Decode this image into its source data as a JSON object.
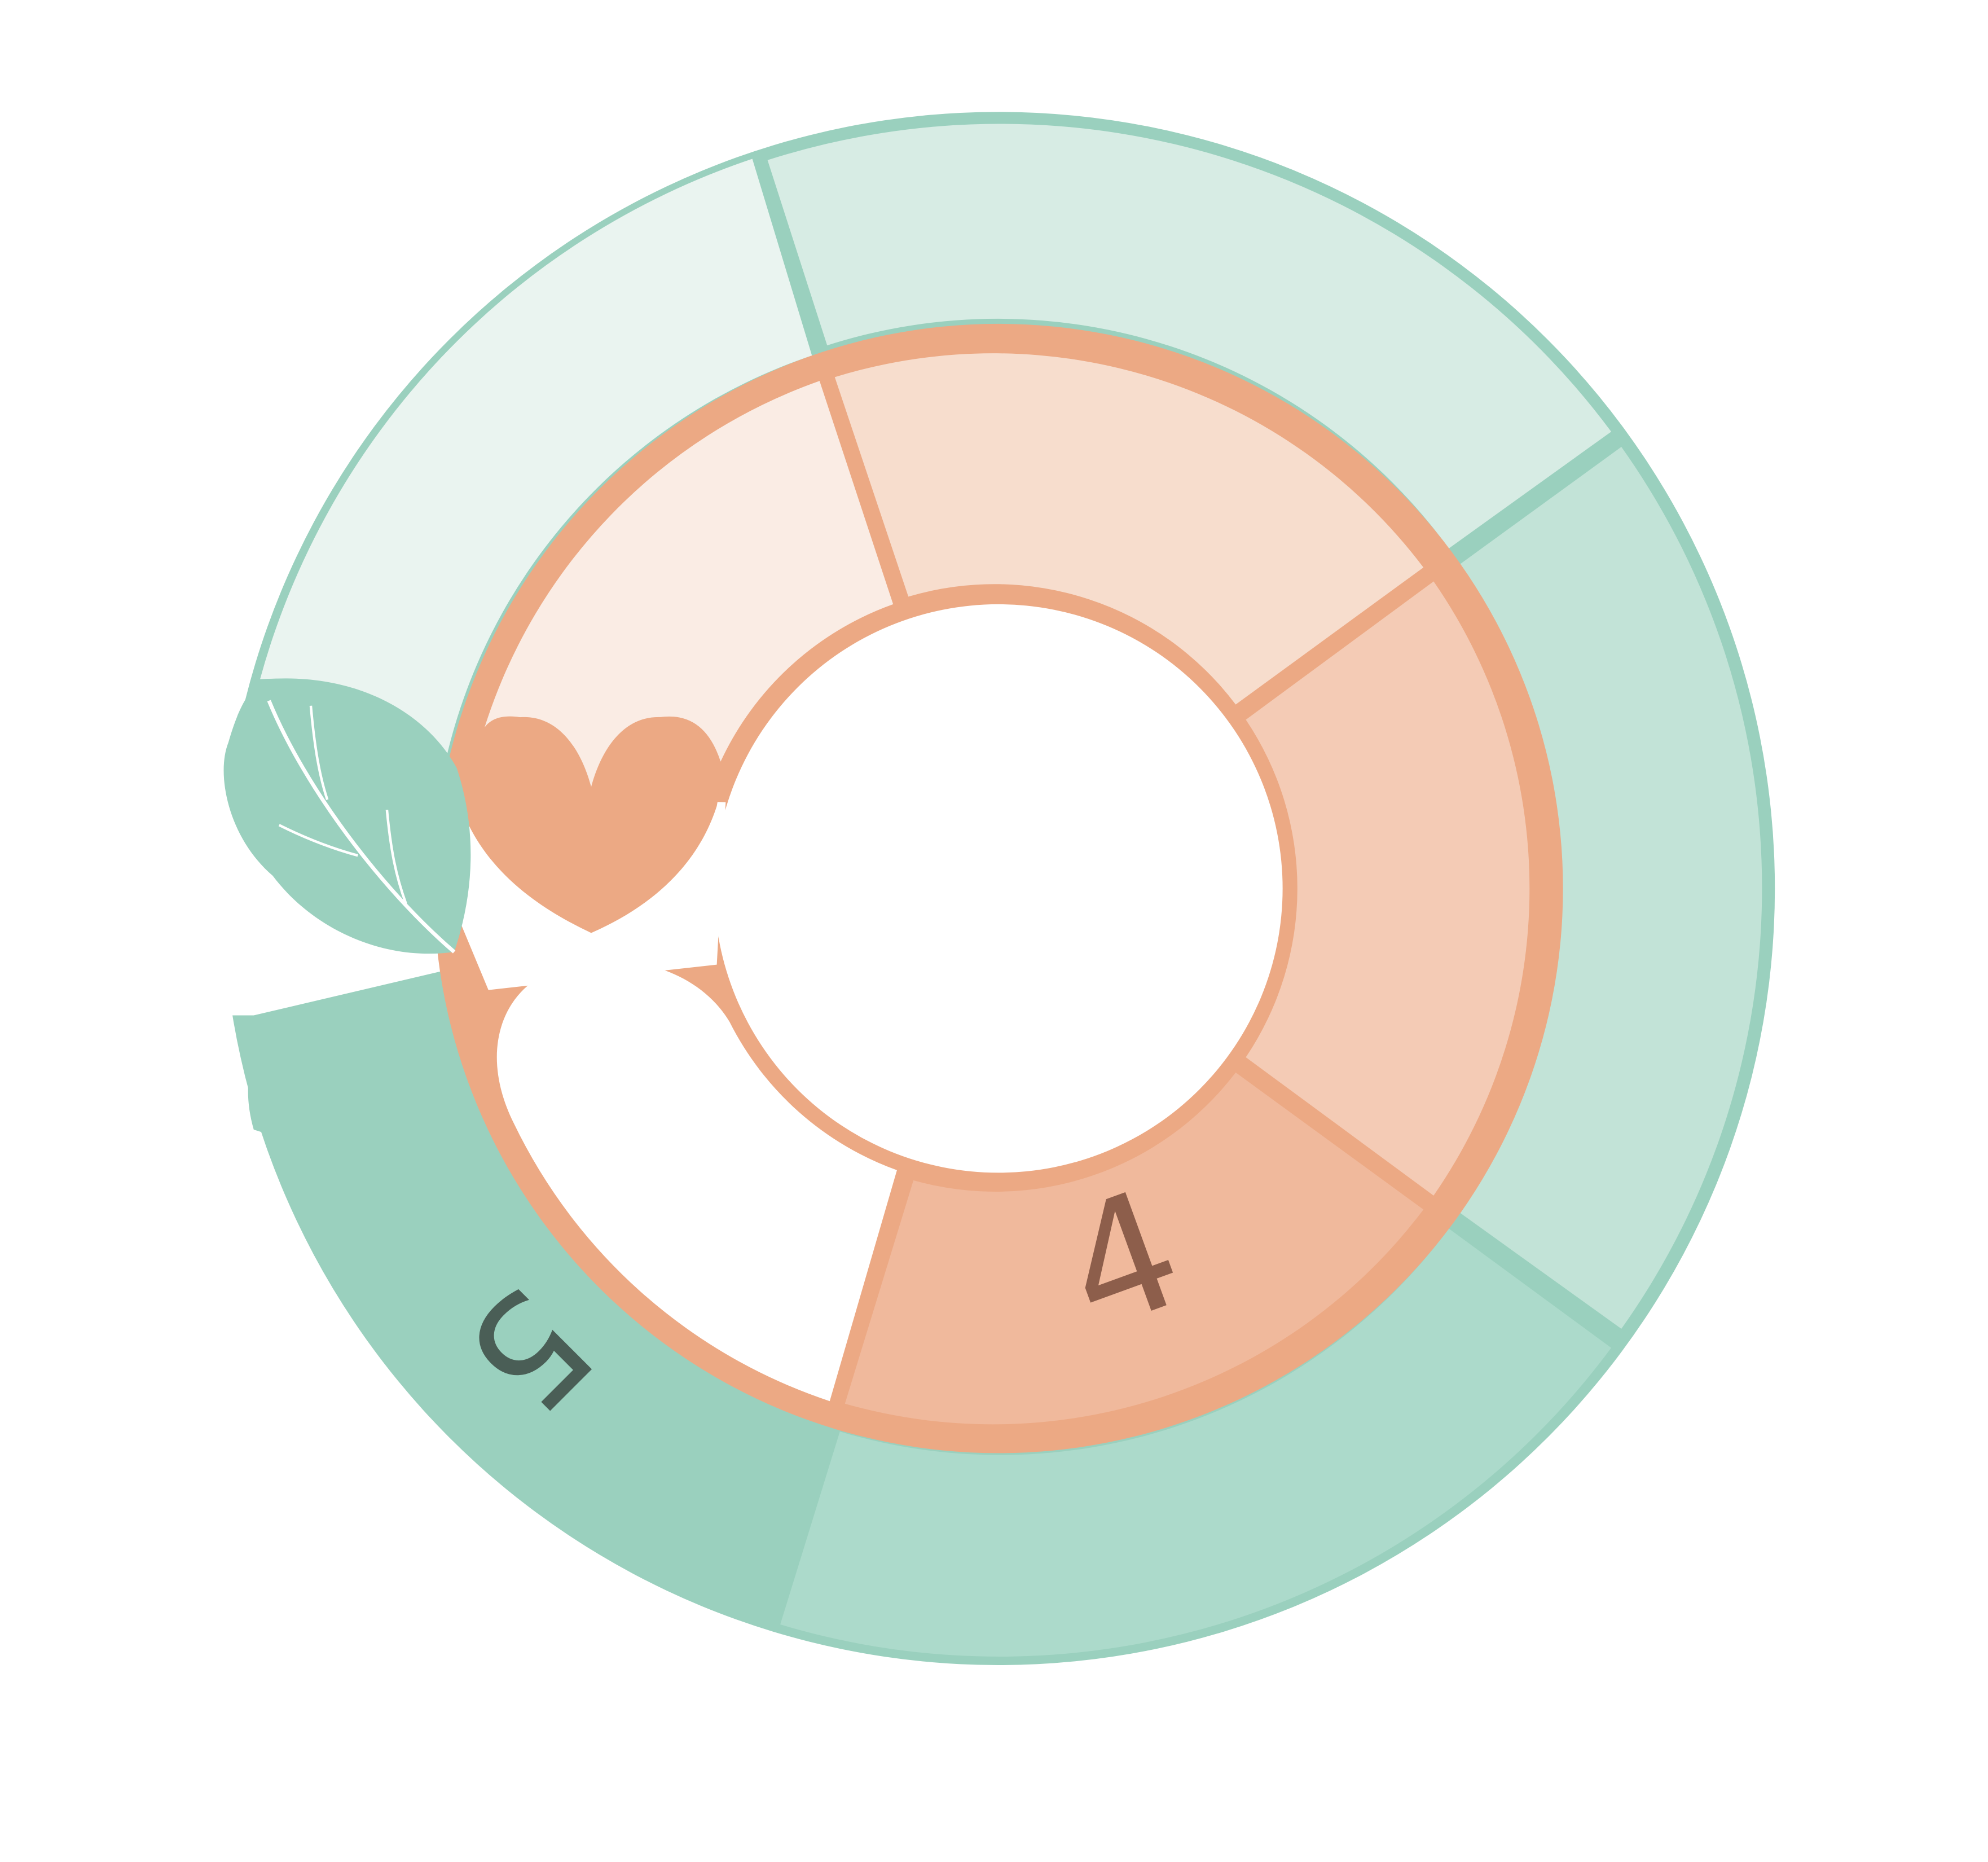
{
  "diagram": {
    "type": "concentric-ring-logo",
    "outer_ring": {
      "segments": 5,
      "label": "5",
      "stroke_color": "#9ad0be",
      "fills": [
        "#eaf4f0",
        "#d7ece4",
        "#c2e3d7",
        "#acdacb",
        "#9ad0be"
      ]
    },
    "inner_ring": {
      "segments": 4,
      "label": "4",
      "stroke_color": "#eca984",
      "fills": [
        "#faece4",
        "#f7ddcd",
        "#f4cbb5",
        "#f0b99c"
      ]
    },
    "text_colors": {
      "label_5": "#4a5e56",
      "label_4": "#8d5e4b"
    },
    "icons": [
      "leaf-icon",
      "heart-icon"
    ],
    "icon_colors": {
      "leaf": "#9ad0be",
      "heart": "#eca984"
    }
  }
}
